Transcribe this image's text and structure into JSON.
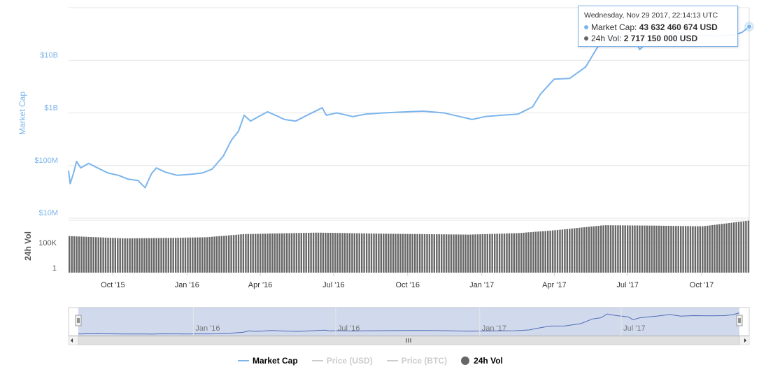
{
  "tooltip": {
    "date": "Wednesday, Nov 29 2017, 22:14:13 UTC",
    "market_cap_label": "Market Cap: ",
    "market_cap_value": "43 632 460 674 USD",
    "vol_label": "24h Vol: ",
    "vol_value": "2 717 150 000 USD"
  },
  "legend": [
    {
      "label": "Market Cap",
      "color": "#7cb5ec",
      "kind": "line",
      "active": true
    },
    {
      "label": "Price (USD)",
      "color": "#cccccc",
      "kind": "line",
      "active": false
    },
    {
      "label": "Price (BTC)",
      "color": "#cccccc",
      "kind": "line",
      "active": false
    },
    {
      "label": "24h Vol",
      "color": "#666666",
      "kind": "dot",
      "active": true
    }
  ],
  "navigator": {
    "tick_labels": [
      "Jan '16",
      "Jul '16",
      "Jan '17",
      "Jul '17"
    ]
  },
  "colors": {
    "market_cap": "#7cb5ec",
    "volume": "#666666",
    "navigator_fill": "rgba(102,133,194,0.3)",
    "navigator_line": "#4e6ab5",
    "grid": "#e6e6e6"
  },
  "chart_data": [
    {
      "type": "line",
      "name": "Market Cap",
      "ylabel": "Market Cap",
      "yscale": "log",
      "yticks": [
        {
          "value": 10000000,
          "label": "$10M"
        },
        {
          "value": 100000000,
          "label": "$100M"
        },
        {
          "value": 1000000000,
          "label": "$1B"
        },
        {
          "value": 10000000000,
          "label": "$10B"
        }
      ],
      "xticks": [
        {
          "date": "2015-10-01",
          "label": "Oct '15"
        },
        {
          "date": "2016-01-01",
          "label": "Jan '16"
        },
        {
          "date": "2016-04-01",
          "label": "Apr '16"
        },
        {
          "date": "2016-07-01",
          "label": "Jul '16"
        },
        {
          "date": "2016-10-01",
          "label": "Oct '16"
        },
        {
          "date": "2017-01-01",
          "label": "Jan '17"
        },
        {
          "date": "2017-04-01",
          "label": "Apr '17"
        },
        {
          "date": "2017-07-01",
          "label": "Jul '17"
        },
        {
          "date": "2017-10-01",
          "label": "Oct '17"
        }
      ],
      "xrange": [
        "2015-08-07",
        "2017-11-29"
      ],
      "series": [
        {
          "name": "Market Cap",
          "points": [
            [
              "2015-08-07",
              80000000
            ],
            [
              "2015-08-09",
              45000000
            ],
            [
              "2015-08-13",
              70000000
            ],
            [
              "2015-08-17",
              120000000
            ],
            [
              "2015-08-22",
              90000000
            ],
            [
              "2015-09-01",
              110000000
            ],
            [
              "2015-09-12",
              90000000
            ],
            [
              "2015-09-25",
              72000000
            ],
            [
              "2015-10-08",
              65000000
            ],
            [
              "2015-10-20",
              55000000
            ],
            [
              "2015-11-01",
              52000000
            ],
            [
              "2015-11-10",
              38000000
            ],
            [
              "2015-11-18",
              70000000
            ],
            [
              "2015-11-24",
              90000000
            ],
            [
              "2015-12-05",
              75000000
            ],
            [
              "2015-12-20",
              65000000
            ],
            [
              "2016-01-05",
              68000000
            ],
            [
              "2016-01-20",
              72000000
            ],
            [
              "2016-02-01",
              85000000
            ],
            [
              "2016-02-15",
              150000000
            ],
            [
              "2016-02-25",
              300000000
            ],
            [
              "2016-03-05",
              450000000
            ],
            [
              "2016-03-12",
              900000000
            ],
            [
              "2016-03-20",
              700000000
            ],
            [
              "2016-03-30",
              850000000
            ],
            [
              "2016-04-10",
              1050000000
            ],
            [
              "2016-04-20",
              900000000
            ],
            [
              "2016-05-01",
              750000000
            ],
            [
              "2016-05-15",
              700000000
            ],
            [
              "2016-06-01",
              950000000
            ],
            [
              "2016-06-17",
              1250000000
            ],
            [
              "2016-06-22",
              900000000
            ],
            [
              "2016-07-05",
              1000000000
            ],
            [
              "2016-07-25",
              850000000
            ],
            [
              "2016-08-10",
              950000000
            ],
            [
              "2016-09-01",
              1000000000
            ],
            [
              "2016-10-01",
              1050000000
            ],
            [
              "2016-10-20",
              1080000000
            ],
            [
              "2016-11-15",
              1000000000
            ],
            [
              "2016-12-05",
              850000000
            ],
            [
              "2016-12-20",
              750000000
            ],
            [
              "2017-01-05",
              850000000
            ],
            [
              "2017-01-25",
              900000000
            ],
            [
              "2017-02-15",
              950000000
            ],
            [
              "2017-03-05",
              1300000000
            ],
            [
              "2017-03-15",
              2300000000
            ],
            [
              "2017-04-01",
              4400000000
            ],
            [
              "2017-04-20",
              4500000000
            ],
            [
              "2017-05-10",
              7500000000
            ],
            [
              "2017-05-25",
              18000000000
            ],
            [
              "2017-06-05",
              22000000000
            ],
            [
              "2017-06-13",
              38000000000
            ],
            [
              "2017-06-25",
              30000000000
            ],
            [
              "2017-07-10",
              25000000000
            ],
            [
              "2017-07-16",
              16000000000
            ],
            [
              "2017-07-25",
              22000000000
            ],
            [
              "2017-08-15",
              28000000000
            ],
            [
              "2017-09-01",
              35000000000
            ],
            [
              "2017-09-15",
              28000000000
            ],
            [
              "2017-10-01",
              30000000000
            ],
            [
              "2017-10-20",
              29000000000
            ],
            [
              "2017-11-10",
              30000000000
            ],
            [
              "2017-11-20",
              34000000000
            ],
            [
              "2017-11-29",
              43632460674
            ]
          ]
        }
      ]
    },
    {
      "type": "bar",
      "name": "24h Vol",
      "ylabel": "24h Vol",
      "yscale": "log",
      "yticks": [
        {
          "value": 1,
          "label": "1"
        },
        {
          "value": 100000,
          "label": "100K"
        }
      ],
      "series": [
        {
          "name": "24h Vol",
          "points": [
            [
              "2015-08-07",
              2000000
            ],
            [
              "2015-10-15",
              700000
            ],
            [
              "2015-12-15",
              900000
            ],
            [
              "2016-01-25",
              1200000
            ],
            [
              "2016-03-10",
              5000000
            ],
            [
              "2016-06-10",
              10000000
            ],
            [
              "2016-09-01",
              6000000
            ],
            [
              "2016-12-15",
              4000000
            ],
            [
              "2017-02-15",
              8000000
            ],
            [
              "2017-04-01",
              30000000
            ],
            [
              "2017-06-01",
              300000000
            ],
            [
              "2017-08-01",
              250000000
            ],
            [
              "2017-10-01",
              180000000
            ],
            [
              "2017-11-29",
              2717150000
            ]
          ]
        }
      ]
    }
  ]
}
